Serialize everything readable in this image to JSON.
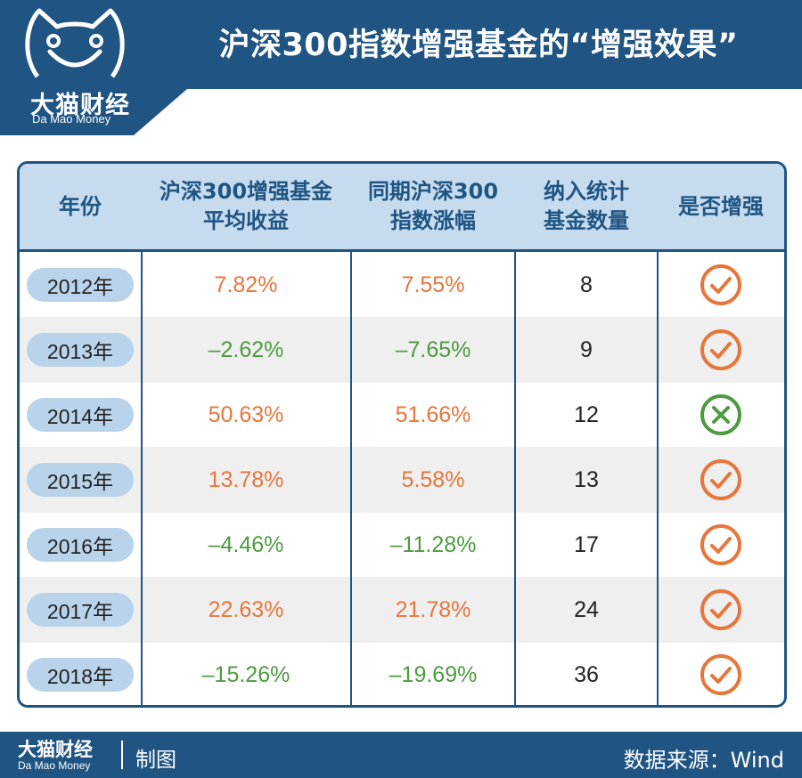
{
  "brand": {
    "name": "大猫财经",
    "name_en": "Da Mao Money"
  },
  "title": "沪深300指数增强基金的“增强效果”",
  "colors": {
    "brand_blue": "#1f5483",
    "header_bg": "#c6dcee",
    "year_pill": "#b9d3ea",
    "positive": "#e7763c",
    "negative": "#4c9b3f",
    "alt_row": "#efefef"
  },
  "chart_data": {
    "type": "table",
    "title": "沪深300指数增强基金的“增强效果”",
    "columns": [
      [
        "年份"
      ],
      [
        "沪深300增强基金",
        "平均收益"
      ],
      [
        "同期沪深300",
        "指数涨幅"
      ],
      [
        "纳入统计",
        "基金数量"
      ],
      [
        "是否增强"
      ]
    ],
    "rows": [
      {
        "year": "2012年",
        "fund_return": "7.82%",
        "index_return": "7.55%",
        "count": "8",
        "enhanced": true
      },
      {
        "year": "2013年",
        "fund_return": "–2.62%",
        "index_return": "–7.65%",
        "count": "9",
        "enhanced": true
      },
      {
        "year": "2014年",
        "fund_return": "50.63%",
        "index_return": "51.66%",
        "count": "12",
        "enhanced": false
      },
      {
        "year": "2015年",
        "fund_return": "13.78%",
        "index_return": "5.58%",
        "count": "13",
        "enhanced": true
      },
      {
        "year": "2016年",
        "fund_return": "–4.46%",
        "index_return": "–11.28%",
        "count": "17",
        "enhanced": true
      },
      {
        "year": "2017年",
        "fund_return": "22.63%",
        "index_return": "21.78%",
        "count": "24",
        "enhanced": true
      },
      {
        "year": "2018年",
        "fund_return": "–15.26%",
        "index_return": "–19.69%",
        "count": "36",
        "enhanced": true
      }
    ],
    "icons": {
      "enhanced_true": "check-circle-icon",
      "enhanced_false": "cross-circle-icon"
    }
  },
  "footer": {
    "brand_name": "大猫财经",
    "brand_en": "Da Mao Money",
    "made": "制图",
    "source": "数据来源：Wind"
  }
}
